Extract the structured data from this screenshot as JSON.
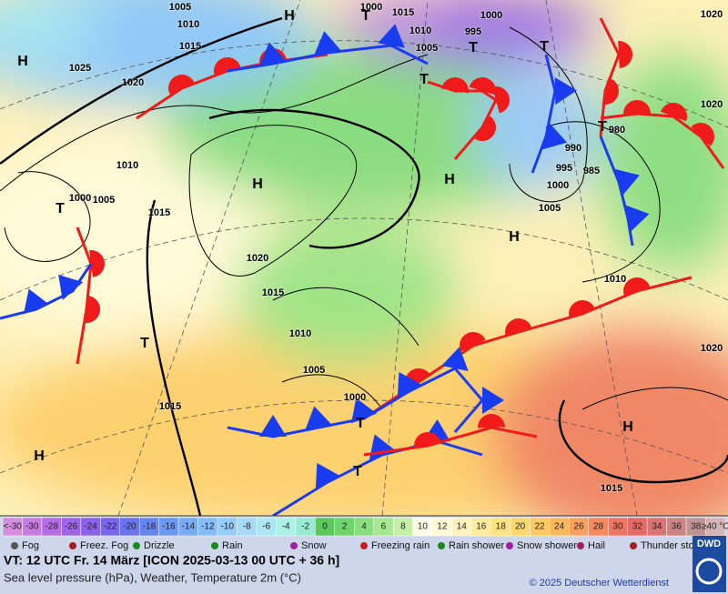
{
  "map": {
    "pressure_labels": [
      "1005",
      "1010",
      "1015",
      "1025",
      "1020",
      "1010",
      "1005",
      "1000",
      "1015",
      "1020",
      "1015",
      "1010",
      "1005",
      "1000",
      "1015",
      "1000",
      "1015",
      "1010",
      "1005",
      "1000",
      "995",
      "990",
      "995",
      "985",
      "980",
      "1000",
      "1005",
      "1010",
      "1020",
      "1020",
      "1020",
      "1015"
    ],
    "centers": [
      "H",
      "H",
      "H",
      "H",
      "H",
      "H",
      "H",
      "T",
      "T",
      "T",
      "T",
      "T",
      "T",
      "T",
      "T",
      "T"
    ]
  },
  "temperature_scale": [
    {
      "label": "<-30",
      "color": "#d58ee0"
    },
    {
      "label": "-30",
      "color": "#c77ce0"
    },
    {
      "label": "-28",
      "color": "#b46ee4"
    },
    {
      "label": "-26",
      "color": "#a064e8"
    },
    {
      "label": "-24",
      "color": "#8c62ec"
    },
    {
      "label": "-22",
      "color": "#7a66ee"
    },
    {
      "label": "-20",
      "color": "#6a74f0"
    },
    {
      "label": "-18",
      "color": "#6486f2"
    },
    {
      "label": "-16",
      "color": "#6a98f4"
    },
    {
      "label": "-14",
      "color": "#78aaf6"
    },
    {
      "label": "-12",
      "color": "#86bcf8"
    },
    {
      "label": "-10",
      "color": "#96ccf8"
    },
    {
      "label": "-8",
      "color": "#a4daf6"
    },
    {
      "label": "-6",
      "color": "#ace6f2"
    },
    {
      "label": "-4",
      "color": "#acf0e6"
    },
    {
      "label": "-2",
      "color": "#98ecd4"
    },
    {
      "label": "0",
      "color": "#5cc85c"
    },
    {
      "label": "2",
      "color": "#6fd46c"
    },
    {
      "label": "4",
      "color": "#8ade7e"
    },
    {
      "label": "6",
      "color": "#a6e890"
    },
    {
      "label": "8",
      "color": "#c4f0a8"
    },
    {
      "label": "10",
      "color": "#fbfbe8"
    },
    {
      "label": "12",
      "color": "#fdf8d6"
    },
    {
      "label": "14",
      "color": "#fdf2bc"
    },
    {
      "label": "16",
      "color": "#fdeb9e"
    },
    {
      "label": "18",
      "color": "#fde384"
    },
    {
      "label": "20",
      "color": "#fdd86e"
    },
    {
      "label": "22",
      "color": "#fdca62"
    },
    {
      "label": "24",
      "color": "#fdb85e"
    },
    {
      "label": "26",
      "color": "#fba05e"
    },
    {
      "label": "28",
      "color": "#f6885e"
    },
    {
      "label": "30",
      "color": "#ee7464"
    },
    {
      "label": "32",
      "color": "#e46a6a"
    },
    {
      "label": "34",
      "color": "#da7474"
    },
    {
      "label": "36",
      "color": "#cc8484"
    },
    {
      "label": "38",
      "color": "#c09494"
    },
    {
      "label": "≥40 °C",
      "color": "#d4b4b4"
    }
  ],
  "legend": [
    "Fog",
    "Freez. Fog",
    "Drizzle",
    "Rain",
    "Snow",
    "Freezing rain",
    "Rain shower",
    "Snow shower",
    "Hail",
    "Thunder storm"
  ],
  "footer": {
    "valid": "VT: 12 UTC Fr.  14 März [ICON 2025-03-13  00 UTC + 36 h]",
    "description": "Sea level pressure (hPa), Weather, Temperature 2m (°C)",
    "copyright": "© 2025 Deutscher Wetterdienst",
    "logo": "DWD"
  }
}
